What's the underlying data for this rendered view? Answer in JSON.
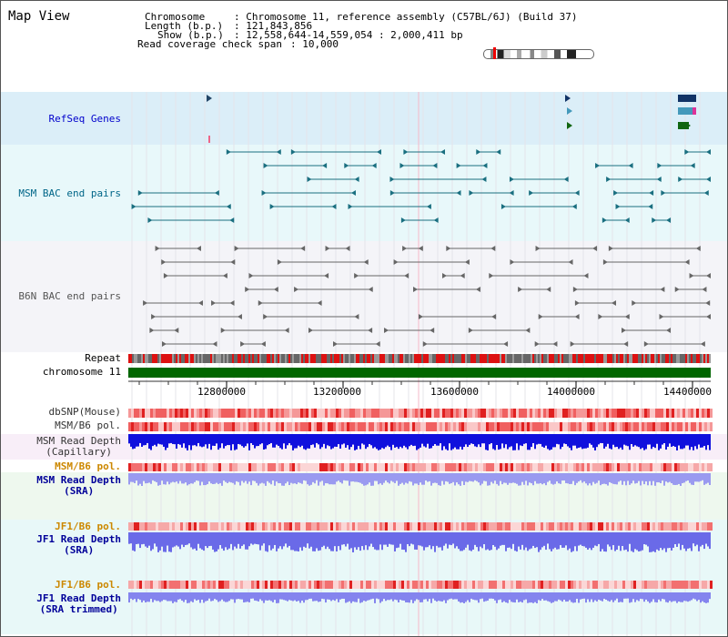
{
  "header": {
    "title": "Map View",
    "chromosome_label": "Chromosome",
    "chromosome_value": ": Chromosome 11, reference assembly (C57BL/6J) (Build 37)",
    "length_label": "Length (b.p.)",
    "length_value": ": 121,843,856",
    "show_label": "Show (b.p.)",
    "show_value": ": 12,558,644-14,559,054 : 2,000,411 bp",
    "coverage_label": "Read coverage check span",
    "coverage_value": ": 10,000"
  },
  "tracks": {
    "refseq": "RefSeq Genes",
    "msm_bac": "MSM BAC end pairs",
    "b6n_bac": "B6N BAC end pairs",
    "repeat": "Repeat",
    "chromosome": "chromosome 11",
    "dbsnp": "dbSNP(Mouse)",
    "msm_b6_pol_1": "MSM/B6 pol.",
    "msm_depth_cap_1": "MSM Read Depth",
    "msm_depth_cap_2": "(Capillary)",
    "msm_b6_pol_2": "MSM/B6 pol.",
    "msm_depth_sra_1": "MSM Read Depth",
    "msm_depth_sra_2": "(SRA)",
    "jf1_b6_pol_1": "JF1/B6 pol.",
    "jf1_depth_sra_1": "JF1 Read Depth",
    "jf1_depth_sra_2": "(SRA)",
    "jf1_b6_pol_2": "JF1/B6 pol.",
    "jf1_depth_trim_1": "JF1 Read Depth",
    "jf1_depth_trim_2": "(SRA trimmed)"
  },
  "axis": {
    "ticks": [
      "12800000",
      "13200000",
      "13600000",
      "14000000",
      "14400000"
    ]
  },
  "colors": {
    "refseq_label": "#0000cc",
    "msm_bac_label": "#006688",
    "b6n_bac_label": "#555555",
    "pol_orange": "#cc8800",
    "depth_blue": "#000099",
    "chromosome_green": "#006600"
  }
}
